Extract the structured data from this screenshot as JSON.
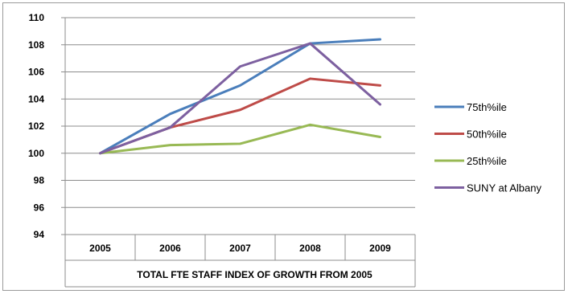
{
  "chart_data": {
    "type": "line",
    "categories": [
      "2005",
      "2006",
      "2007",
      "2008",
      "2009"
    ],
    "xlabel": "TOTAL FTE STAFF   INDEX OF GROWTH FROM 2005",
    "ylabel": "",
    "ylim": [
      94,
      110
    ],
    "yticks": [
      94,
      96,
      98,
      100,
      102,
      104,
      106,
      108,
      110
    ],
    "grid": true,
    "legend_position": "right",
    "series": [
      {
        "name": "75th%ile",
        "color": "#4a7ebb",
        "values": [
          100,
          102.9,
          105.0,
          108.1,
          108.4
        ]
      },
      {
        "name": "50th%ile",
        "color": "#be4b48",
        "values": [
          100,
          101.9,
          103.2,
          105.5,
          105.0
        ]
      },
      {
        "name": "25th%ile",
        "color": "#98b954",
        "values": [
          100,
          100.6,
          100.7,
          102.1,
          101.2
        ]
      },
      {
        "name": "SUNY at Albany",
        "color": "#7d60a0",
        "values": [
          100,
          101.9,
          106.4,
          108.1,
          103.6
        ]
      }
    ]
  }
}
